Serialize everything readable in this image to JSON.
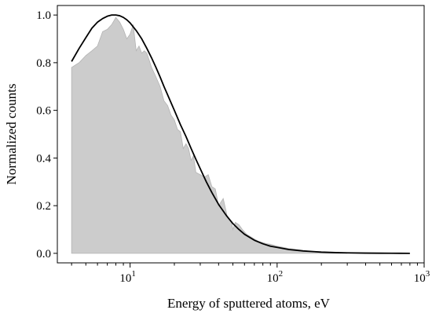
{
  "chart_data": {
    "type": "area",
    "xlabel": "Energy of sputtered atoms, eV",
    "ylabel": "Normalized counts",
    "x_scale": "log",
    "xlim": [
      3.2,
      1000
    ],
    "ylim": [
      -0.04,
      1.04
    ],
    "x_ticks": [
      {
        "value": 10,
        "base": "10",
        "exp": "1"
      },
      {
        "value": 100,
        "base": "10",
        "exp": "2"
      },
      {
        "value": 1000,
        "base": "10",
        "exp": "3"
      }
    ],
    "y_ticks": [
      {
        "value": 0.0,
        "label": "0.0"
      },
      {
        "value": 0.2,
        "label": "0.2"
      },
      {
        "value": 0.4,
        "label": "0.4"
      },
      {
        "value": 0.6,
        "label": "0.6"
      },
      {
        "value": 0.8,
        "label": "0.8"
      },
      {
        "value": 1.0,
        "label": "1.0"
      }
    ],
    "series": [
      {
        "kind": "histogram",
        "color": "#cccccc",
        "x": [
          4,
          4.5,
          5,
          5.5,
          6,
          6.5,
          7,
          7.5,
          8,
          8.5,
          9,
          9.5,
          10,
          10.5,
          11,
          11.5,
          12,
          12.5,
          13,
          13.5,
          14,
          15,
          16,
          17,
          18,
          19,
          20,
          21,
          22,
          23,
          24,
          25,
          26,
          27,
          28,
          30,
          32,
          34,
          36,
          38,
          40,
          43,
          46,
          49,
          50,
          52,
          55,
          58,
          62,
          66,
          70,
          75,
          80,
          85,
          90,
          100,
          110,
          120,
          130,
          140,
          150,
          160,
          170,
          180,
          190,
          200,
          220,
          250,
          300
        ],
        "y": [
          0.78,
          0.8,
          0.83,
          0.85,
          0.87,
          0.93,
          0.94,
          0.96,
          0.99,
          0.97,
          0.94,
          0.9,
          0.92,
          0.96,
          0.85,
          0.87,
          0.84,
          0.85,
          0.84,
          0.81,
          0.78,
          0.74,
          0.7,
          0.64,
          0.62,
          0.58,
          0.56,
          0.52,
          0.51,
          0.44,
          0.46,
          0.44,
          0.39,
          0.41,
          0.34,
          0.33,
          0.32,
          0.33,
          0.28,
          0.27,
          0.2,
          0.23,
          0.15,
          0.13,
          0.1,
          0.13,
          0.12,
          0.1,
          0.08,
          0.07,
          0.06,
          0.05,
          0.045,
          0.04,
          0.038,
          0.03,
          0.025,
          0.02,
          0.018,
          0.015,
          0.012,
          0.01,
          0.008,
          0.007,
          0.006,
          0.005,
          0.003,
          0.002,
          0.0
        ]
      },
      {
        "kind": "fit",
        "color": "#000000",
        "x": [
          4,
          4.5,
          5,
          5.5,
          6,
          6.5,
          7,
          7.5,
          8,
          8.5,
          9,
          9.5,
          10,
          11,
          12,
          13,
          14,
          15,
          16,
          17,
          18,
          20,
          22,
          24,
          26,
          28,
          30,
          33,
          36,
          40,
          45,
          50,
          55,
          60,
          70,
          80,
          90,
          100,
          120,
          150,
          180,
          200,
          250,
          300,
          400,
          500,
          600,
          800
        ],
        "y": [
          0.805,
          0.86,
          0.905,
          0.945,
          0.97,
          0.985,
          0.995,
          1.0,
          1.0,
          0.997,
          0.99,
          0.98,
          0.967,
          0.935,
          0.9,
          0.86,
          0.82,
          0.78,
          0.74,
          0.7,
          0.665,
          0.6,
          0.54,
          0.49,
          0.44,
          0.395,
          0.355,
          0.3,
          0.255,
          0.205,
          0.16,
          0.125,
          0.1,
          0.08,
          0.055,
          0.04,
          0.03,
          0.025,
          0.016,
          0.01,
          0.007,
          0.005,
          0.003,
          0.002,
          0.001,
          0.0005,
          0.0003,
          0.0
        ]
      }
    ]
  }
}
